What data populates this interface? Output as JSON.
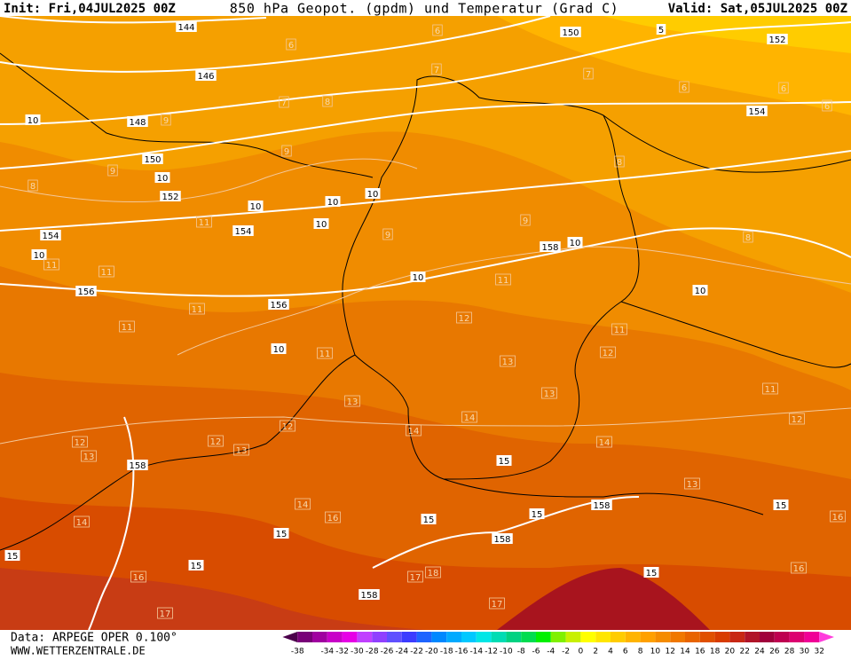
{
  "header": {
    "init": "Init: Fri,04JUL2025 00Z",
    "title": "850 hPa Geopot. (gpdm) und Temperatur (Grad C)",
    "valid": "Valid: Sat,05JUL2025 00Z"
  },
  "footer": {
    "source": "Data: ARPEGE OPER 0.100°",
    "url": "WWW.WETTERZENTRALE.DE"
  },
  "colorbar": {
    "labels": [
      -38,
      -34,
      -32,
      -30,
      -28,
      -26,
      -24,
      -22,
      -20,
      -18,
      -16,
      -14,
      -12,
      -10,
      -8,
      -6,
      -4,
      -2,
      0,
      2,
      4,
      6,
      8,
      10,
      12,
      14,
      16,
      18,
      20,
      22,
      24,
      26,
      28,
      30,
      32
    ],
    "colors": [
      "#4b004b",
      "#780078",
      "#a000a0",
      "#c800c8",
      "#e600e6",
      "#c040ff",
      "#9040ff",
      "#6050ff",
      "#3c3cff",
      "#1e64ff",
      "#0088ff",
      "#00aaff",
      "#00c8ff",
      "#00e6e6",
      "#00dcb4",
      "#00d282",
      "#00dc50",
      "#00f000",
      "#80f000",
      "#c8f000",
      "#ffff00",
      "#ffe600",
      "#ffcc00",
      "#ffb400",
      "#ffa000",
      "#f58c00",
      "#f07800",
      "#e86400",
      "#e05000",
      "#d83c00",
      "#c82814",
      "#b01428",
      "#a0003c",
      "#be0050",
      "#dc0070",
      "#f00096",
      "#ff3cdc"
    ]
  },
  "contour_labels": {
    "isohypse": [
      "144",
      "146",
      "148",
      "150",
      "152",
      "154",
      "154",
      "156",
      "156",
      "158",
      "158",
      "150",
      "152",
      "154",
      "158",
      "158",
      "158"
    ],
    "isotherm_major": [
      "10",
      "10",
      "10",
      "10",
      "10",
      "10",
      "10",
      "10",
      "10",
      "10",
      "10",
      "15",
      "15",
      "15",
      "15",
      "15",
      "15",
      "15",
      "15",
      "5"
    ],
    "isotherm_minor": [
      "6",
      "6",
      "6",
      "6",
      "6",
      "7",
      "7",
      "7",
      "8",
      "8",
      "8",
      "8",
      "9",
      "9",
      "9",
      "9",
      "9",
      "11",
      "11",
      "11",
      "11",
      "11",
      "11",
      "11",
      "11",
      "11",
      "12",
      "12",
      "12",
      "12",
      "12",
      "12",
      "13",
      "13",
      "13",
      "13",
      "13",
      "13",
      "14",
      "14",
      "14",
      "14",
      "14",
      "16",
      "16",
      "16",
      "16",
      "17",
      "17",
      "17",
      "18"
    ]
  }
}
